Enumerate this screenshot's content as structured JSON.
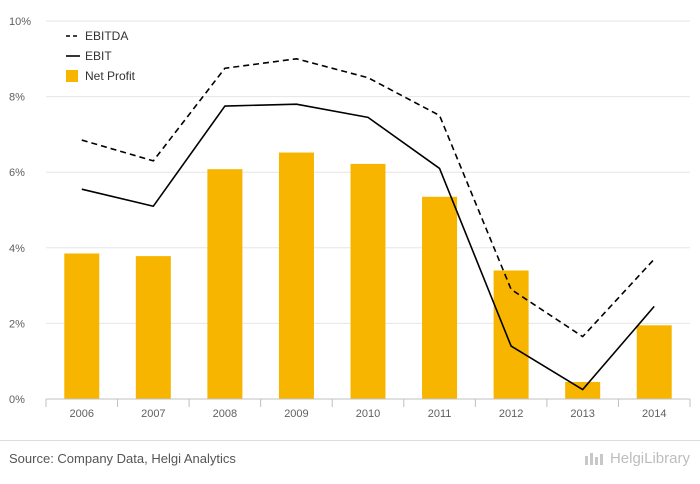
{
  "chart_data": {
    "type": "bar",
    "categories": [
      "2006",
      "2007",
      "2008",
      "2009",
      "2010",
      "2011",
      "2012",
      "2013",
      "2014"
    ],
    "series": [
      {
        "name": "EBITDA",
        "type": "line",
        "style": "dashed",
        "color": "#000000",
        "values": [
          6.85,
          6.3,
          8.75,
          9.0,
          8.5,
          7.5,
          2.9,
          1.65,
          3.7
        ]
      },
      {
        "name": "EBIT",
        "type": "line",
        "style": "solid",
        "color": "#000000",
        "values": [
          5.55,
          5.1,
          7.75,
          7.8,
          7.45,
          6.1,
          1.4,
          0.25,
          2.45
        ]
      },
      {
        "name": "Net Profit",
        "type": "bar",
        "color": "#f7b500",
        "values": [
          3.85,
          3.78,
          6.08,
          6.52,
          6.22,
          5.35,
          3.4,
          0.45,
          1.95
        ]
      }
    ],
    "ylim": [
      0,
      10
    ],
    "yticks": [
      "0%",
      "2%",
      "4%",
      "6%",
      "8%",
      "10%"
    ],
    "ytick_values": [
      0,
      2,
      4,
      6,
      8,
      10
    ],
    "grid": true,
    "legend_position": "top-left"
  },
  "footer": {
    "source": "Source: Company Data, Helgi Analytics",
    "brand": "HelgiLibrary"
  }
}
